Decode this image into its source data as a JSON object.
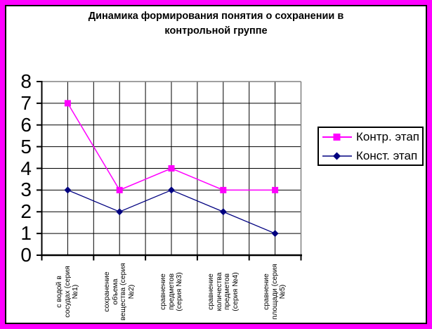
{
  "colors": {
    "frame": "#FF00FF",
    "plot_border_gray": "#808080",
    "grid": "#000000",
    "background": "#FFFFFF"
  },
  "chart_data": {
    "type": "line",
    "title": "Динамика формирования  понятия о сохранении в\nконтрольной группе",
    "xlabel": "",
    "ylabel": "",
    "ylim": [
      0,
      8
    ],
    "ytick_step": 1,
    "yticks": [
      0,
      1,
      2,
      3,
      4,
      5,
      6,
      7,
      8
    ],
    "grid": true,
    "legend_position": "right",
    "categories": [
      {
        "label": "с водой в сосудах (серия №1)",
        "lines": "с водой в\nсосудах (серия\n№1)"
      },
      {
        "label": "сохранение объема вещества (серия №2)",
        "lines": "сохранение\nобъема\nвещества (серия\n№2)"
      },
      {
        "label": "сравнение предметов (серия №3)",
        "lines": "сравнение\nпредметов\n(серия №3)"
      },
      {
        "label": "сравнение количества предметов (серия №4)",
        "lines": "сравнение\nколичества\nпредметов\n(серия №4)"
      },
      {
        "label": "сравнение площади (серия №5)",
        "lines": "сравнение\nплощади (серия\n№5)"
      }
    ],
    "series": [
      {
        "name": "Контр. этап",
        "color": "#FF00FF",
        "marker": "square",
        "values": [
          7,
          3,
          4,
          3,
          3
        ]
      },
      {
        "name": "Конст. этап",
        "color": "#000080",
        "marker": "diamond",
        "values": [
          3,
          2,
          3,
          2,
          1
        ]
      }
    ]
  }
}
